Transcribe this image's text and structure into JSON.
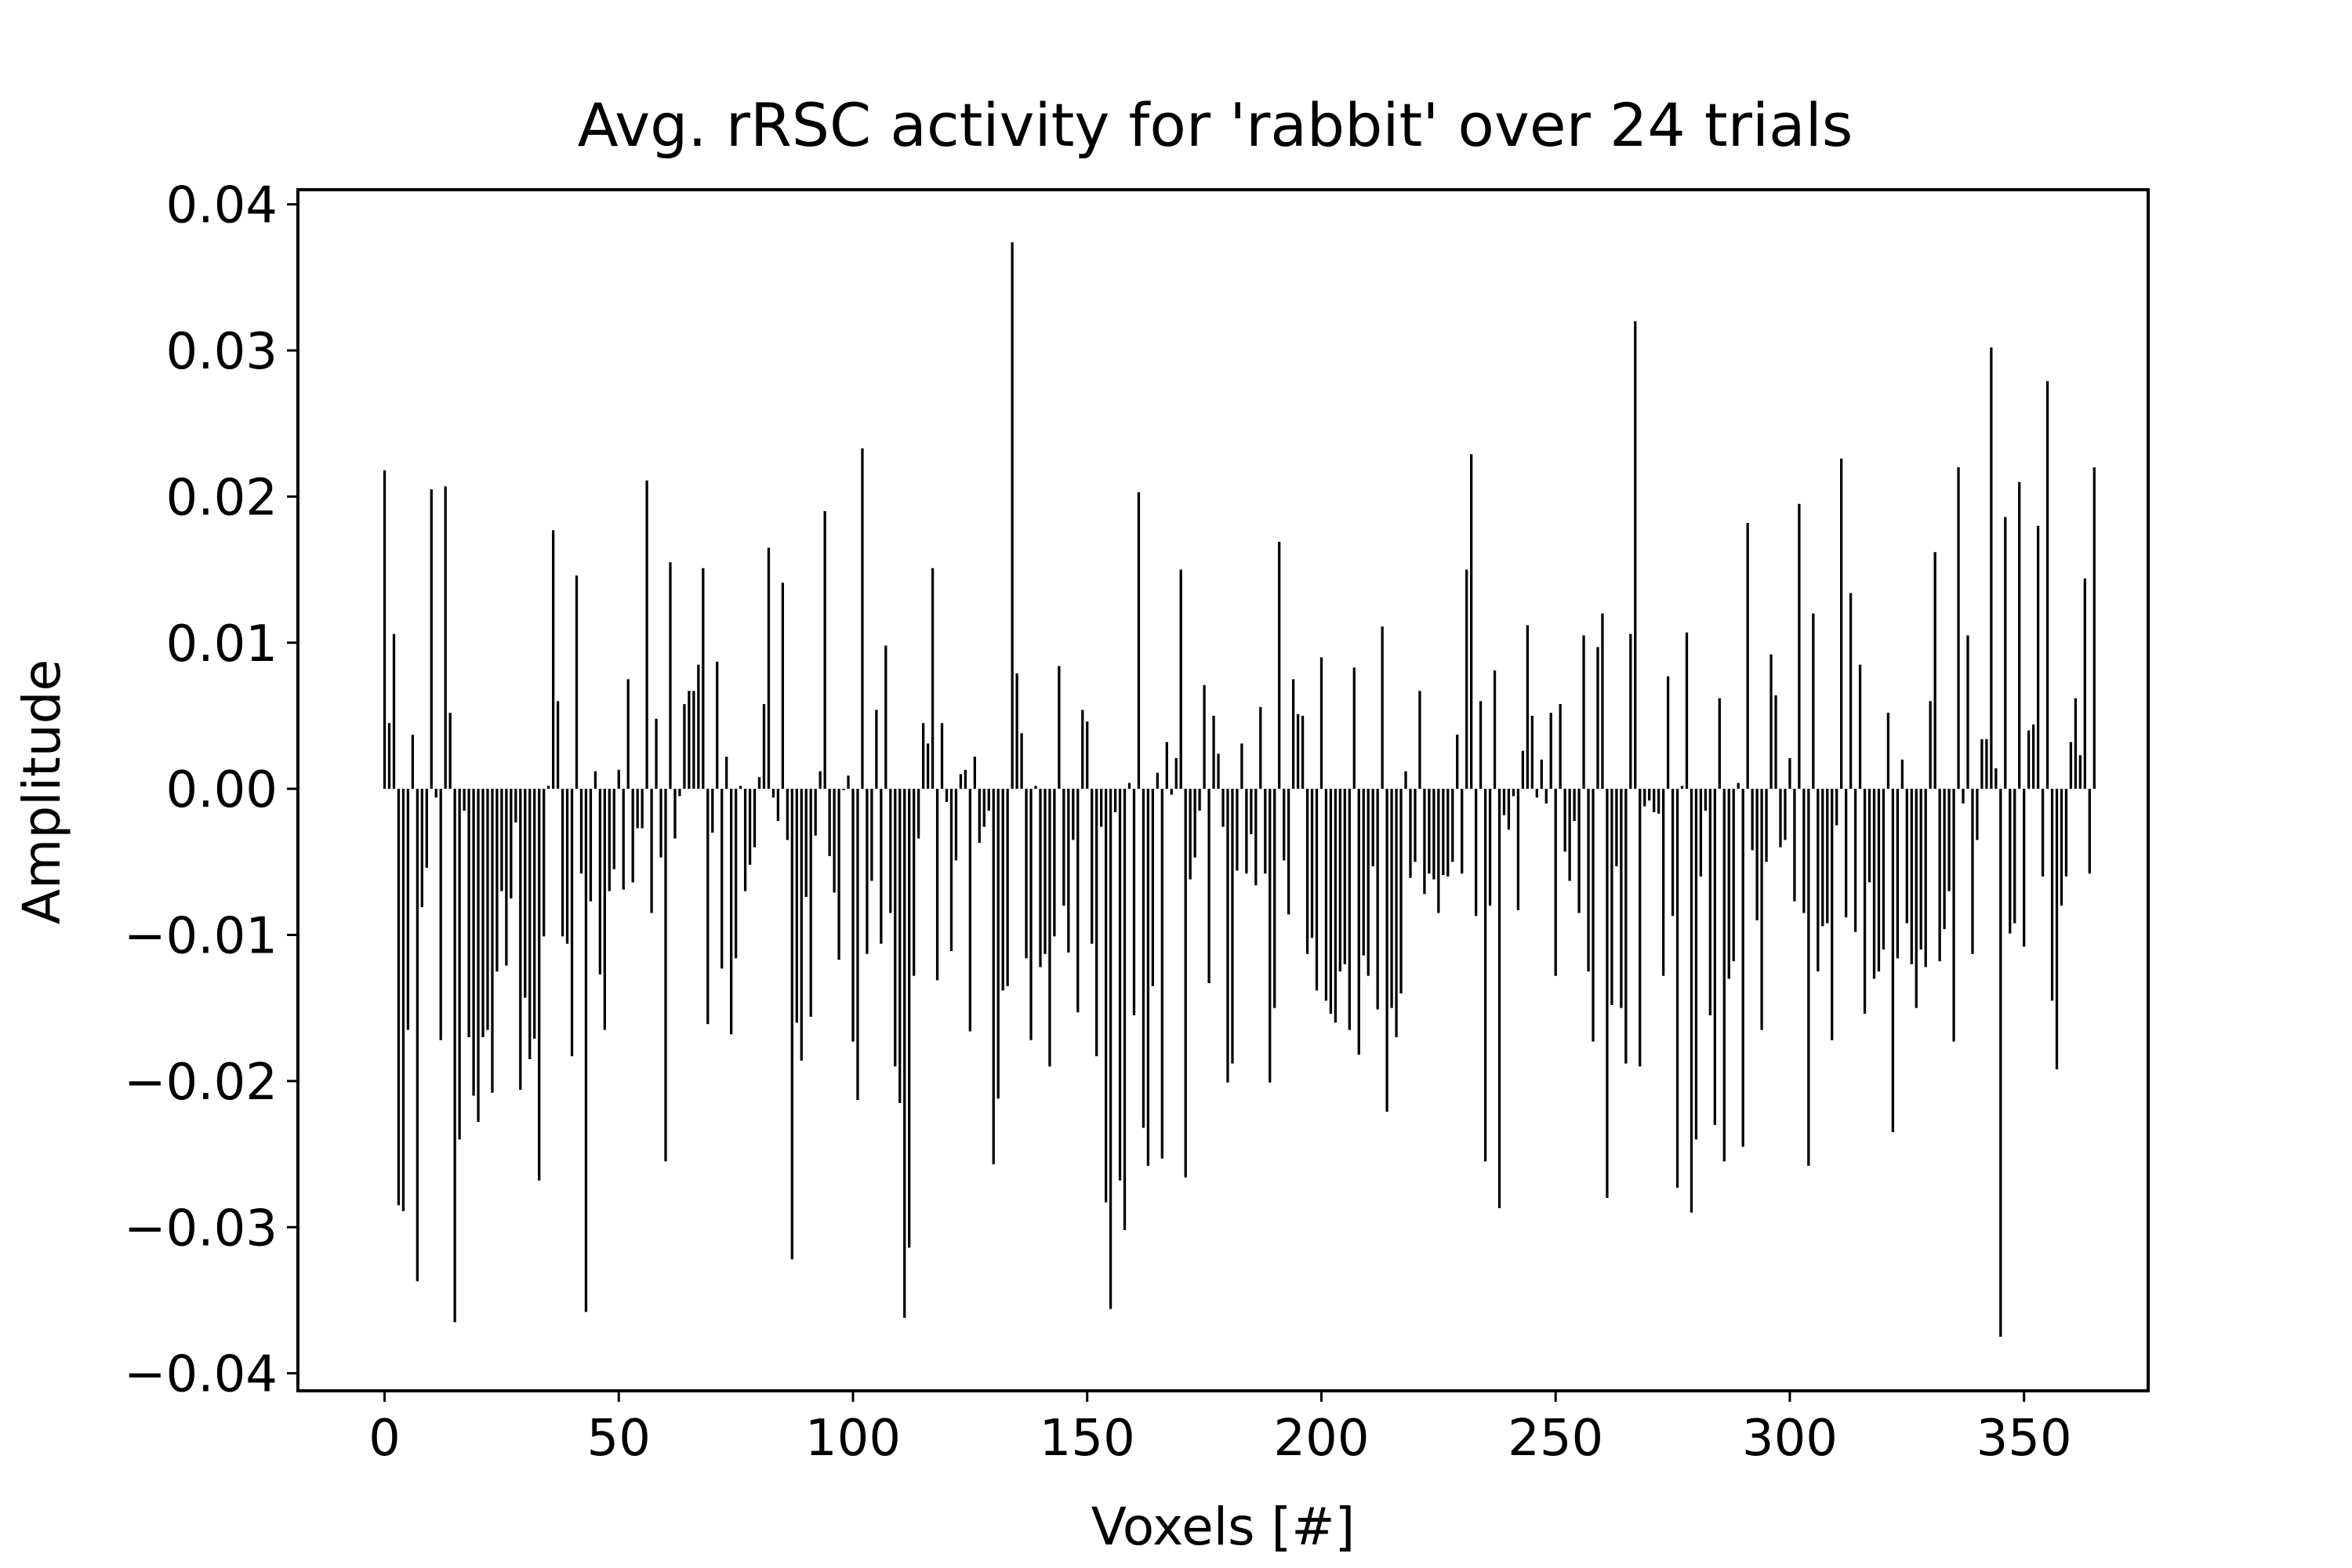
{
  "chart_data": {
    "type": "bar",
    "title": "Avg. rRSC activity for 'rabbit' over 24 trials",
    "xlabel": "Voxels [#]",
    "ylabel": "Amplitude",
    "xlim": [
      -18.5,
      376.5
    ],
    "ylim": [
      -0.0412,
      0.041
    ],
    "xticks": [
      0,
      50,
      100,
      150,
      200,
      250,
      300,
      350
    ],
    "xtick_labels": [
      "0",
      "50",
      "100",
      "150",
      "200",
      "250",
      "300",
      "350"
    ],
    "yticks": [
      -0.04,
      -0.03,
      -0.02,
      -0.01,
      0.0,
      0.01,
      0.02,
      0.03,
      0.04
    ],
    "ytick_labels": [
      "−0.04",
      "−0.03",
      "−0.02",
      "−0.01",
      "0.00",
      "0.01",
      "0.02",
      "0.03",
      "0.04"
    ],
    "grid": false,
    "bar_color": "#000000",
    "x_start": 0,
    "values": [
      0.0218,
      0.0045,
      0.0106,
      -0.0285,
      -0.0289,
      -0.0165,
      0.0037,
      -0.0337,
      -0.0081,
      -0.0054,
      0.0205,
      -0.0006,
      -0.0172,
      0.0207,
      0.0052,
      -0.0365,
      -0.024,
      -0.0015,
      -0.017,
      -0.021,
      -0.0228,
      -0.017,
      -0.0165,
      -0.0208,
      -0.0125,
      -0.007,
      -0.0121,
      -0.0075,
      -0.0023,
      -0.0206,
      -0.0143,
      -0.0185,
      -0.0171,
      -0.0268,
      -0.0101,
      0.0002,
      0.0177,
      0.006,
      -0.0101,
      -0.0106,
      -0.0183,
      0.0146,
      -0.0058,
      -0.0358,
      -0.0077,
      0.0012,
      -0.0127,
      -0.0165,
      -0.007,
      -0.0055,
      0.0013,
      -0.0069,
      0.0075,
      -0.0064,
      -0.0027,
      -0.0027,
      0.0211,
      -0.0085,
      0.0048,
      -0.0047,
      -0.0255,
      0.0155,
      -0.0034,
      -0.0005,
      0.0058,
      0.0067,
      0.0067,
      0.0085,
      0.0151,
      -0.0161,
      -0.003,
      0.0087,
      -0.0123,
      0.0022,
      -0.0168,
      -0.0116,
      0.0002,
      -0.007,
      -0.0052,
      -0.004,
      0.0008,
      0.0058,
      0.0165,
      -0.0006,
      -0.0022,
      0.0141,
      -0.0035,
      -0.0322,
      -0.016,
      -0.0186,
      -0.0074,
      -0.0156,
      -0.0032,
      0.0012,
      0.019,
      -0.0046,
      -0.0071,
      -0.0117,
      -0.0001,
      0.0009,
      -0.0173,
      -0.0213,
      0.0233,
      -0.0113,
      -0.0063,
      0.0054,
      -0.0106,
      0.0098,
      -0.0085,
      -0.019,
      -0.0215,
      -0.0362,
      -0.0314,
      -0.0128,
      -0.0034,
      0.0045,
      0.0031,
      0.0151,
      -0.0131,
      0.0045,
      -0.0009,
      -0.0111,
      -0.0049,
      0.001,
      0.0013,
      -0.0166,
      0.0022,
      -0.0037,
      -0.0026,
      -0.0015,
      -0.0257,
      -0.0212,
      -0.0138,
      -0.0135,
      0.0374,
      0.0079,
      0.0038,
      -0.0116,
      -0.0172,
      0.0002,
      -0.0122,
      -0.0113,
      -0.019,
      -0.0101,
      0.0084,
      -0.008,
      -0.0112,
      -0.0035,
      -0.0153,
      0.0054,
      0.0046,
      -0.0106,
      -0.0183,
      -0.0026,
      -0.0283,
      -0.0356,
      -0.0016,
      -0.0268,
      -0.0302,
      0.0004,
      -0.0155,
      0.0203,
      -0.0232,
      -0.0258,
      -0.0135,
      0.0011,
      -0.0253,
      0.0032,
      -0.0004,
      0.0021,
      0.015,
      -0.0266,
      -0.0062,
      -0.0047,
      -0.0015,
      0.0071,
      -0.0133,
      0.005,
      0.0024,
      -0.0026,
      -0.0201,
      -0.0188,
      -0.0056,
      0.0031,
      -0.0058,
      -0.0031,
      -0.0066,
      0.0056,
      -0.0058,
      -0.0201,
      -0.015,
      0.0169,
      -0.0049,
      -0.0086,
      0.0075,
      0.0051,
      0.005,
      -0.0113,
      -0.0102,
      -0.0138,
      0.009,
      -0.0145,
      -0.0154,
      -0.016,
      -0.0125,
      -0.012,
      -0.0165,
      0.0083,
      -0.0182,
      -0.0114,
      -0.0128,
      -0.0053,
      -0.0151,
      0.0111,
      -0.0221,
      -0.015,
      -0.017,
      -0.014,
      0.0012,
      -0.0061,
      -0.005,
      0.0067,
      -0.0072,
      -0.0058,
      -0.0062,
      -0.0085,
      -0.0059,
      -0.006,
      -0.005,
      0.0037,
      -0.0058,
      0.015,
      0.0229,
      -0.0087,
      0.006,
      -0.0255,
      -0.008,
      0.0081,
      -0.0287,
      -0.0018,
      -0.0028,
      -0.0005,
      -0.0083,
      0.0026,
      0.0112,
      0.005,
      -0.0006,
      0.002,
      -0.001,
      0.0052,
      -0.0128,
      0.0058,
      -0.0043,
      -0.0063,
      -0.0022,
      -0.0085,
      0.0105,
      -0.0125,
      -0.0173,
      0.0097,
      0.012,
      -0.028,
      -0.0148,
      -0.0053,
      -0.015,
      -0.0188,
      0.0106,
      0.032,
      -0.019,
      -0.0012,
      -0.0008,
      -0.0016,
      -0.0017,
      -0.0128,
      0.0077,
      -0.0087,
      -0.0273,
      0.0002,
      0.0107,
      -0.029,
      -0.024,
      -0.006,
      -0.0015,
      -0.0155,
      -0.023,
      0.0062,
      -0.0255,
      -0.013,
      -0.0118,
      0.0004,
      -0.0245,
      0.0182,
      -0.0042,
      -0.009,
      -0.0165,
      -0.005,
      0.0092,
      0.0064,
      -0.004,
      -0.0035,
      0.0021,
      -0.0077,
      0.0195,
      -0.0085,
      -0.0258,
      0.012,
      -0.0125,
      -0.0094,
      -0.0092,
      -0.0172,
      -0.0025,
      0.0226,
      -0.0088,
      0.0134,
      -0.0098,
      0.0085,
      -0.0154,
      -0.0064,
      -0.013,
      -0.0125,
      -0.011,
      0.0052,
      -0.0235,
      -0.0116,
      0.002,
      -0.0092,
      -0.012,
      -0.015,
      -0.011,
      -0.0122,
      0.006,
      0.0162,
      -0.0118,
      -0.0096,
      -0.007,
      -0.0173,
      0.022,
      -0.001,
      0.0105,
      -0.0113,
      -0.0035,
      0.0034,
      0.0034,
      0.0302,
      0.0014,
      -0.0375,
      0.0186,
      -0.0099,
      -0.0092,
      0.021,
      -0.0108,
      0.004,
      0.0044,
      0.018,
      -0.006,
      0.0279,
      -0.0145,
      -0.0192,
      -0.008,
      -0.006,
      0.0032,
      0.0062,
      0.0023,
      0.0144,
      -0.0058,
      0.022
    ]
  }
}
